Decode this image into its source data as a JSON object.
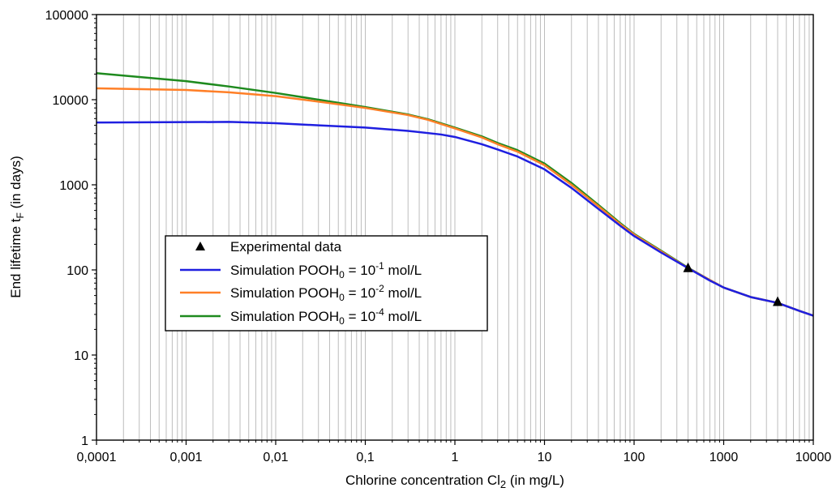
{
  "chart_data": {
    "type": "line",
    "xscale": "log",
    "yscale": "log",
    "xlim": [
      0.0001,
      10000
    ],
    "ylim": [
      1,
      100000
    ],
    "grid": "vertical minor and major lines on x",
    "x_ticks": [
      "0,0001",
      "0,001",
      "0,01",
      "0,1",
      "1",
      "10",
      "100",
      "1000",
      "10000"
    ],
    "y_ticks": [
      "1",
      "10",
      "100",
      "1000",
      "10000",
      "100000"
    ],
    "xlabel": {
      "main": "Chlorine concentration Cl",
      "sub": "2",
      "tail": " (in mg/L)"
    },
    "ylabel": {
      "main": "End lifetime t",
      "sub": "F",
      "tail": " (in days)"
    },
    "legend": {
      "position": "center-left",
      "entries": [
        {
          "kind": "marker",
          "text": "Experimental data"
        },
        {
          "kind": "line",
          "color": "#1f1fe0",
          "pre": "Simulation POOH",
          "sub": "0",
          "mid": " = 10",
          "sup": "-1",
          "post": " mol/L"
        },
        {
          "kind": "line",
          "color": "#ff7f27",
          "pre": "Simulation POOH",
          "sub": "0",
          "mid": " = 10",
          "sup": "-2",
          "post": " mol/L"
        },
        {
          "kind": "line",
          "color": "#1e8a1e",
          "pre": "Simulation POOH",
          "sub": "0",
          "mid": " = 10",
          "sup": "-4",
          "post": " mol/L"
        }
      ]
    },
    "experimental": {
      "name": "Experimental data",
      "marker": "triangle",
      "points": [
        [
          400,
          105
        ],
        [
          4000,
          42
        ]
      ]
    },
    "series": [
      {
        "name": "Simulation POOH0 = 10-1 mol/L",
        "color": "#1f1fe0",
        "points": [
          [
            0.0001,
            5400
          ],
          [
            0.001,
            5450
          ],
          [
            0.003,
            5480
          ],
          [
            0.01,
            5300
          ],
          [
            0.03,
            5000
          ],
          [
            0.1,
            4700
          ],
          [
            0.3,
            4300
          ],
          [
            0.7,
            3900
          ],
          [
            1,
            3650
          ],
          [
            2,
            3000
          ],
          [
            3,
            2600
          ],
          [
            5,
            2150
          ],
          [
            10,
            1520
          ],
          [
            20,
            920
          ],
          [
            40,
            520
          ],
          [
            70,
            330
          ],
          [
            100,
            250
          ],
          [
            200,
            160
          ],
          [
            400,
            105
          ],
          [
            700,
            75
          ],
          [
            1000,
            62
          ],
          [
            2000,
            48
          ],
          [
            4000,
            41
          ],
          [
            7000,
            33
          ],
          [
            10000,
            29
          ]
        ]
      },
      {
        "name": "Simulation POOH0 = 10-2 mol/L",
        "color": "#ff7f27",
        "points": [
          [
            0.0001,
            13600
          ],
          [
            0.001,
            13000
          ],
          [
            0.003,
            12200
          ],
          [
            0.01,
            11000
          ],
          [
            0.03,
            9500
          ],
          [
            0.1,
            8000
          ],
          [
            0.3,
            6600
          ],
          [
            0.5,
            5800
          ],
          [
            1,
            4600
          ],
          [
            2,
            3600
          ],
          [
            3,
            3000
          ],
          [
            5,
            2450
          ],
          [
            10,
            1700
          ],
          [
            20,
            1000
          ],
          [
            40,
            560
          ],
          [
            70,
            345
          ],
          [
            100,
            260
          ],
          [
            200,
            165
          ],
          [
            400,
            105
          ],
          [
            700,
            76
          ],
          [
            1000,
            62
          ],
          [
            2000,
            48
          ],
          [
            4000,
            41
          ],
          [
            7000,
            33
          ],
          [
            10000,
            29
          ]
        ]
      },
      {
        "name": "Simulation POOH0 = 10-4 mol/L",
        "color": "#1e8a1e",
        "points": [
          [
            0.0001,
            20500
          ],
          [
            0.001,
            16500
          ],
          [
            0.003,
            14300
          ],
          [
            0.01,
            12000
          ],
          [
            0.03,
            10000
          ],
          [
            0.1,
            8200
          ],
          [
            0.3,
            6700
          ],
          [
            0.5,
            5900
          ],
          [
            1,
            4700
          ],
          [
            2,
            3700
          ],
          [
            3,
            3100
          ],
          [
            5,
            2550
          ],
          [
            10,
            1780
          ],
          [
            20,
            1050
          ],
          [
            40,
            580
          ],
          [
            70,
            355
          ],
          [
            100,
            265
          ],
          [
            200,
            168
          ],
          [
            400,
            106
          ],
          [
            700,
            76
          ],
          [
            1000,
            62
          ],
          [
            2000,
            48
          ],
          [
            4000,
            41
          ],
          [
            7000,
            33
          ],
          [
            10000,
            29
          ]
        ]
      }
    ]
  }
}
